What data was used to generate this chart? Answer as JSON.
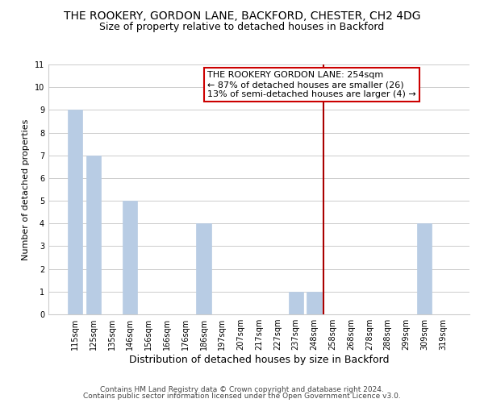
{
  "title": "THE ROOKERY, GORDON LANE, BACKFORD, CHESTER, CH2 4DG",
  "subtitle": "Size of property relative to detached houses in Backford",
  "xlabel": "Distribution of detached houses by size in Backford",
  "ylabel": "Number of detached properties",
  "footer_line1": "Contains HM Land Registry data © Crown copyright and database right 2024.",
  "footer_line2": "Contains public sector information licensed under the Open Government Licence v3.0.",
  "categories": [
    "115sqm",
    "125sqm",
    "135sqm",
    "146sqm",
    "156sqm",
    "166sqm",
    "176sqm",
    "186sqm",
    "197sqm",
    "207sqm",
    "217sqm",
    "227sqm",
    "237sqm",
    "248sqm",
    "258sqm",
    "268sqm",
    "278sqm",
    "288sqm",
    "299sqm",
    "309sqm",
    "319sqm"
  ],
  "values": [
    9,
    7,
    0,
    5,
    0,
    0,
    0,
    4,
    0,
    0,
    0,
    0,
    1,
    1,
    0,
    0,
    0,
    0,
    0,
    4,
    0
  ],
  "bar_color": "#b8cce4",
  "bar_edge_color": "#b8cce4",
  "subject_line_color": "#aa0000",
  "annotation_text": "THE ROOKERY GORDON LANE: 254sqm\n← 87% of detached houses are smaller (26)\n13% of semi-detached houses are larger (4) →",
  "annotation_box_edge_color": "#cc0000",
  "annotation_box_face_color": "#ffffff",
  "ylim": [
    0,
    11
  ],
  "yticks": [
    0,
    1,
    2,
    3,
    4,
    5,
    6,
    7,
    8,
    9,
    10,
    11
  ],
  "grid_color": "#cccccc",
  "background_color": "#ffffff",
  "title_fontsize": 10,
  "subtitle_fontsize": 9,
  "xlabel_fontsize": 9,
  "ylabel_fontsize": 8,
  "tick_fontsize": 7,
  "annotation_fontsize": 8,
  "footer_fontsize": 6.5
}
